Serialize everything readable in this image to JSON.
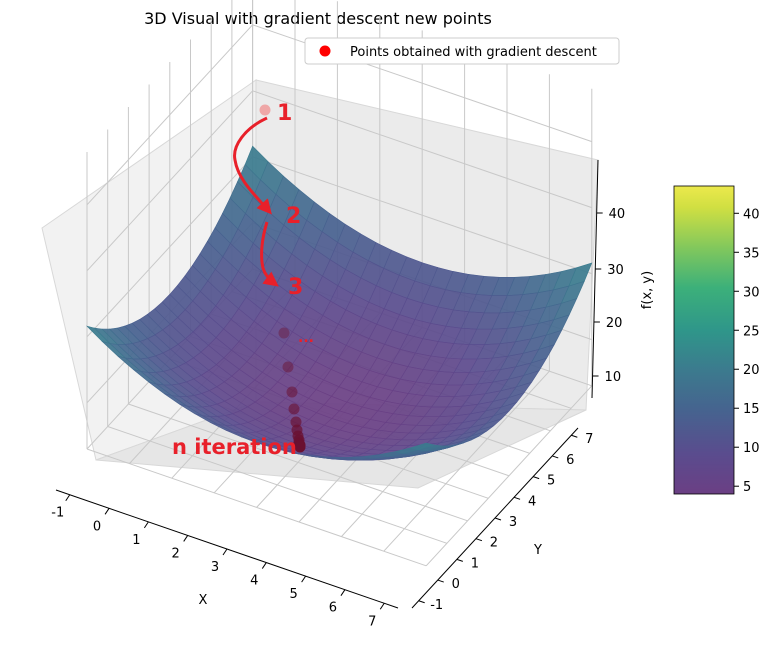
{
  "title": "3D Visual with gradient descent new points",
  "legend": {
    "label": "Points obtained with gradient descent",
    "color": "#ff0000",
    "position": "upper-right"
  },
  "chart_data": {
    "type": "surface3d",
    "title": "3D Visual with gradient descent new points",
    "function_shape": "paraboloid",
    "xlabel": "X",
    "ylabel": "Y",
    "zlabel": "f(x, y)",
    "xlim": [
      -1,
      7
    ],
    "ylim": [
      -1,
      7
    ],
    "zlim": [
      3,
      45
    ],
    "x_ticks": [
      -1,
      0,
      1,
      2,
      3,
      4,
      5,
      6,
      7
    ],
    "y_ticks": [
      -1,
      0,
      1,
      2,
      3,
      4,
      5,
      6,
      7
    ],
    "z_ticks": [
      10,
      20,
      30,
      40
    ],
    "colormap": "viridis",
    "colorbar": {
      "min": 4,
      "max": 43.5,
      "ticks": [
        5,
        10,
        15,
        20,
        25,
        30,
        35,
        40
      ]
    },
    "grid": true,
    "series": [
      {
        "name": "Points obtained with gradient descent",
        "type": "scatter3d",
        "color": "#ff0000",
        "points": [
          {
            "x": -1.0,
            "y": 6.0,
            "z": 44.0
          },
          {
            "x": 0.1,
            "y": 5.4,
            "z": 33.0
          },
          {
            "x": 0.9,
            "y": 4.9,
            "z": 26.0
          },
          {
            "x": 1.5,
            "y": 4.5,
            "z": 20.0
          },
          {
            "x": 1.9,
            "y": 4.2,
            "z": 16.0
          },
          {
            "x": 2.2,
            "y": 4.0,
            "z": 13.0
          },
          {
            "x": 2.4,
            "y": 3.9,
            "z": 11.0
          },
          {
            "x": 2.55,
            "y": 3.8,
            "z": 9.5
          },
          {
            "x": 2.65,
            "y": 3.75,
            "z": 8.5
          },
          {
            "x": 2.72,
            "y": 3.7,
            "z": 7.8
          },
          {
            "x": 2.78,
            "y": 3.67,
            "z": 7.3
          },
          {
            "x": 2.82,
            "y": 3.64,
            "z": 6.9
          },
          {
            "x": 2.85,
            "y": 3.62,
            "z": 6.6
          }
        ]
      }
    ],
    "annotations": [
      {
        "text": "1",
        "color": "#e8202a"
      },
      {
        "text": "2",
        "color": "#e8202a"
      },
      {
        "text": "3",
        "color": "#e8202a"
      },
      {
        "text": "...",
        "color": "#e8202a"
      },
      {
        "text": "n iteration",
        "color": "#e8202a"
      }
    ]
  }
}
